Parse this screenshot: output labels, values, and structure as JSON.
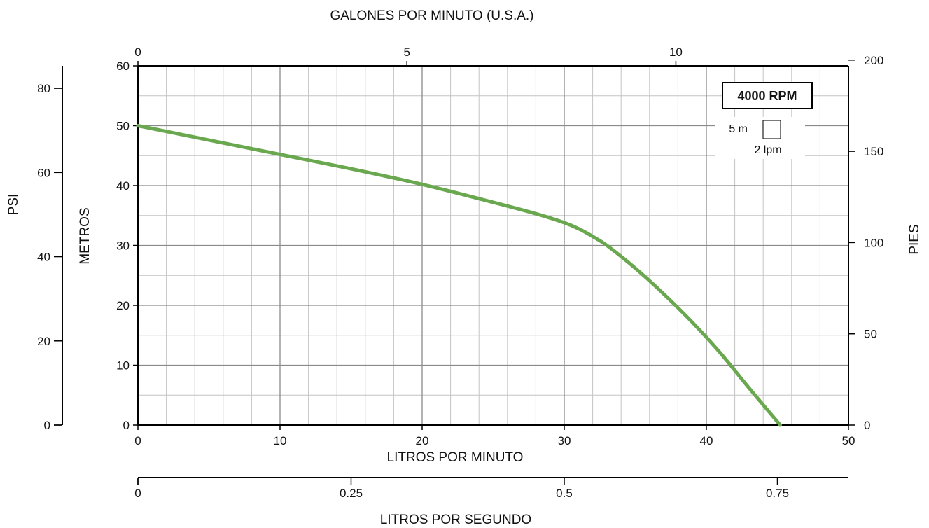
{
  "chart_data": {
    "type": "line",
    "title": "",
    "rpm_label": "4000 RPM",
    "scale_note": {
      "head": "5 m",
      "flow": "2 lpm"
    },
    "axes": {
      "x_bottom": {
        "label": "LITROS POR MINUTO",
        "range": [
          0,
          50
        ],
        "ticks": [
          "0",
          "10",
          "20",
          "30",
          "40",
          "50"
        ]
      },
      "x_top": {
        "label": "GALONES POR MINUTO (U.S.A.)",
        "ticks": [
          "0",
          "5",
          "10"
        ]
      },
      "x_second": {
        "label": "LITROS POR SEGUNDO",
        "ticks": [
          "0",
          "0.25",
          "0.5",
          "0.75"
        ]
      },
      "y_left": {
        "label": "METROS",
        "range": [
          0,
          60
        ],
        "ticks": [
          "0",
          "10",
          "20",
          "30",
          "40",
          "50",
          "60"
        ]
      },
      "y_psi": {
        "label": "PSI",
        "ticks": [
          "0",
          "20",
          "40",
          "60",
          "80"
        ]
      },
      "y_right": {
        "label": "PIES",
        "ticks": [
          "0",
          "50",
          "100",
          "150",
          "200"
        ]
      }
    },
    "grid": true,
    "series": [
      {
        "color": "#6aa84f",
        "x": [
          0,
          5,
          10,
          15,
          20,
          25,
          28,
          30,
          31,
          32,
          33,
          35,
          37,
          39,
          41,
          43,
          45.2
        ],
        "y": [
          50,
          47.6,
          45.2,
          42.8,
          40.2,
          37.2,
          35.3,
          33.8,
          32.8,
          31.5,
          30.0,
          26.2,
          21.9,
          17.2,
          12.0,
          6.2,
          0
        ]
      }
    ]
  }
}
